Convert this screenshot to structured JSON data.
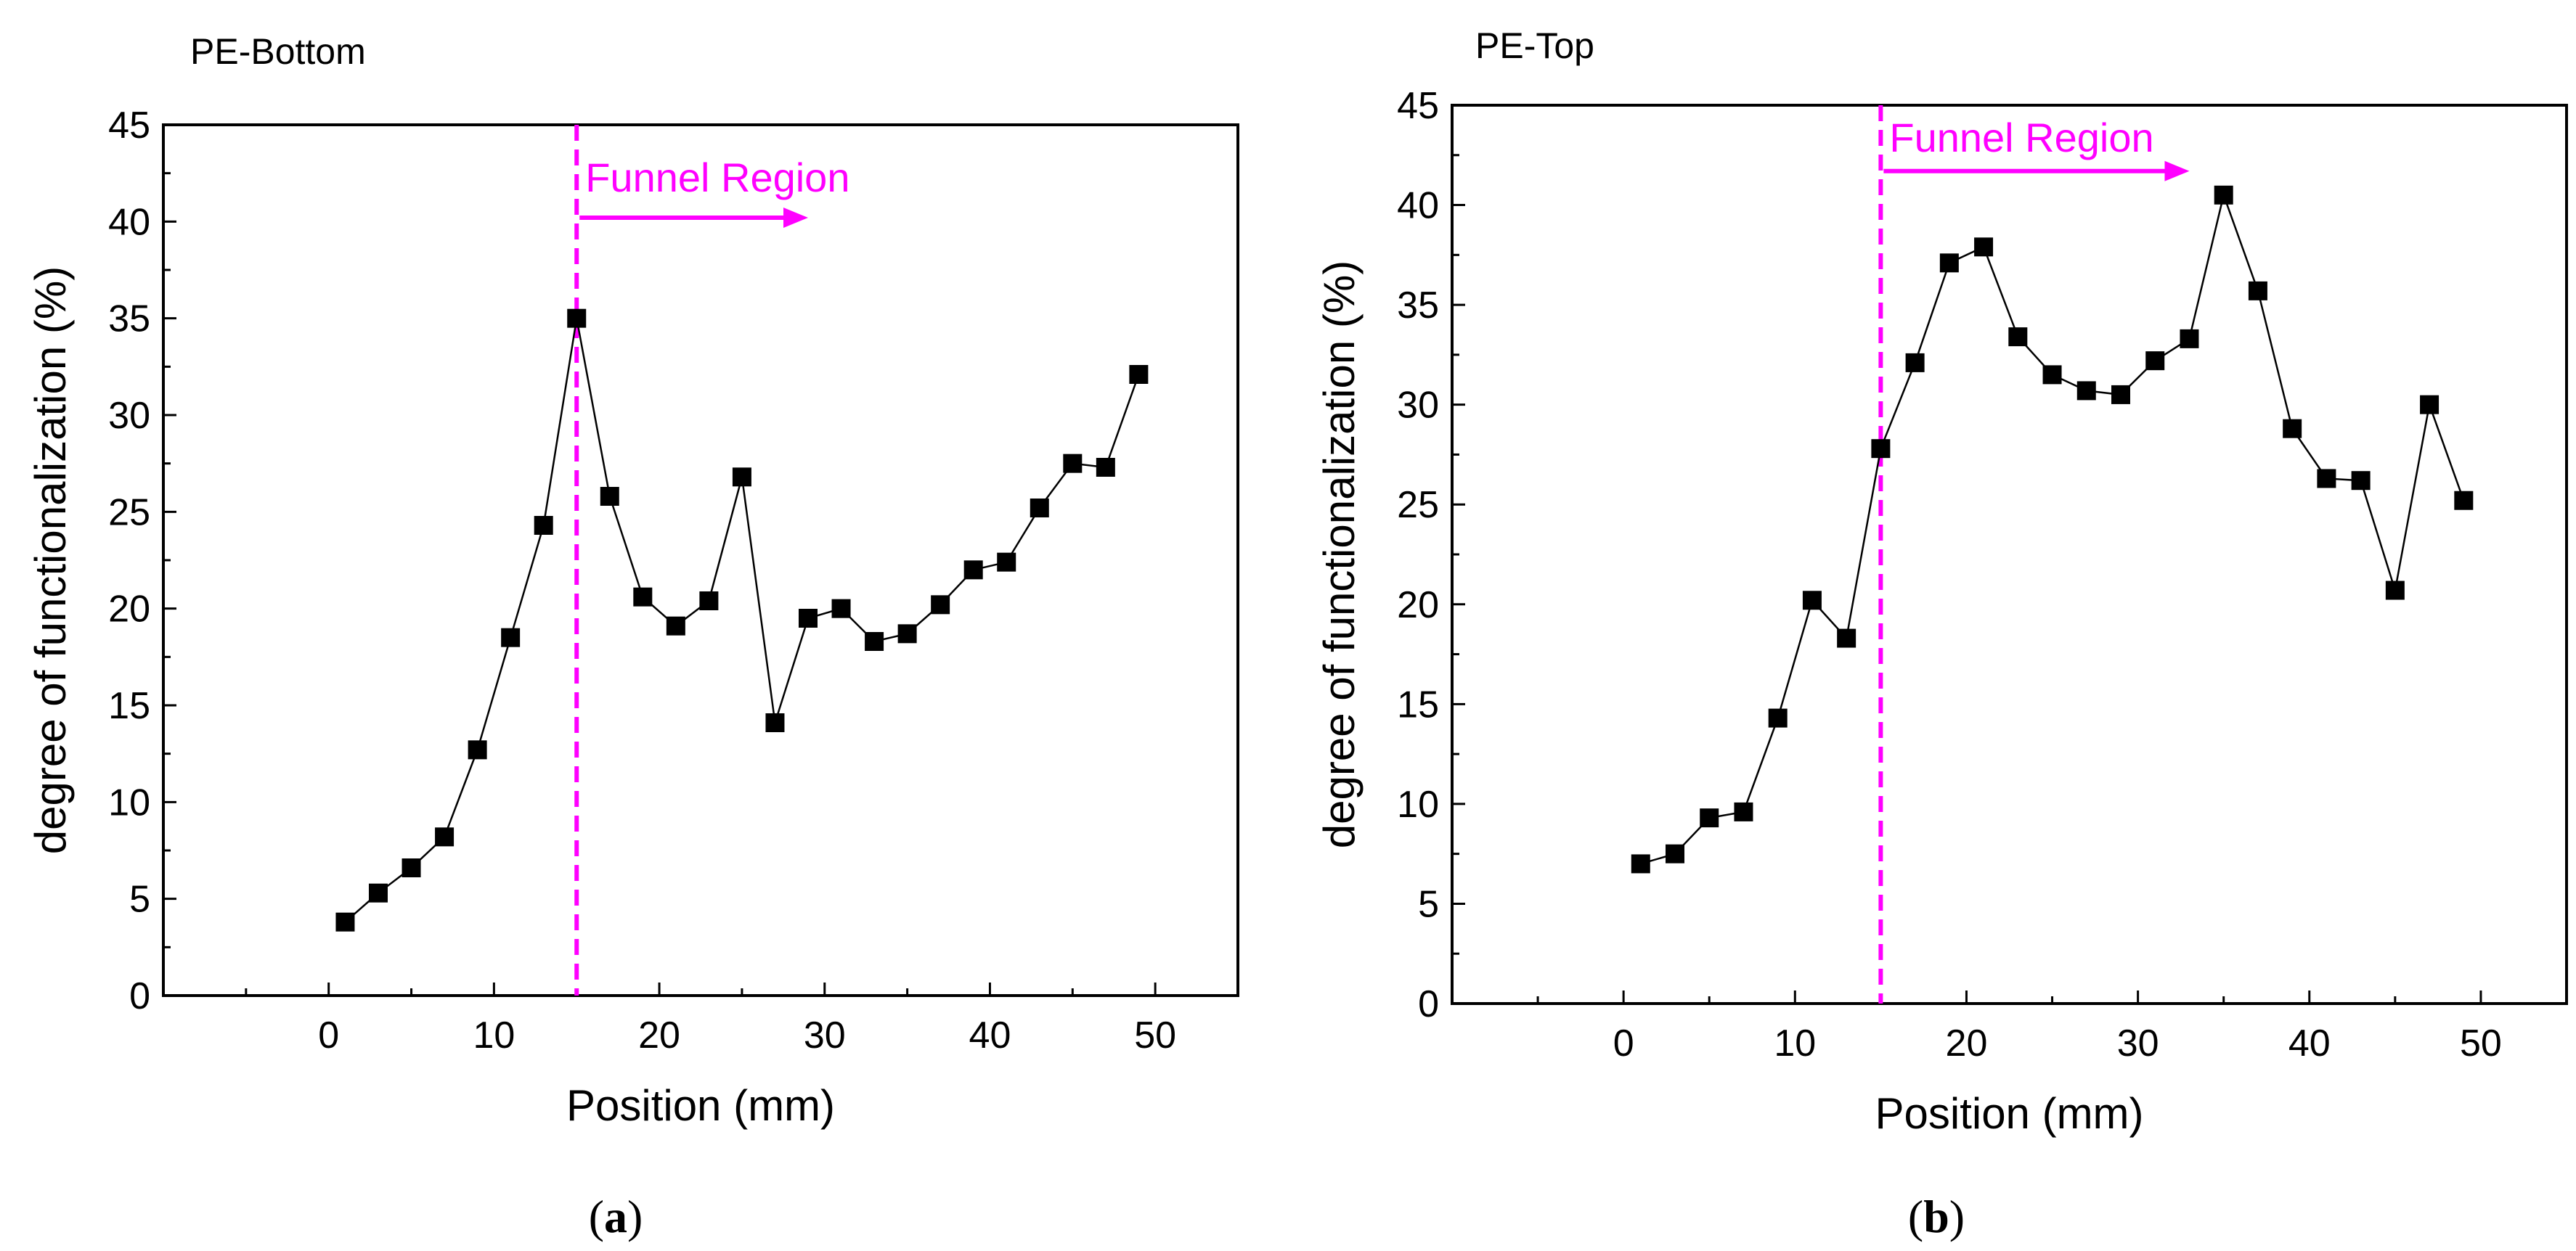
{
  "chart_data": [
    {
      "type": "line",
      "panel": "a",
      "title": "PE-Bottom",
      "caption_open": "(",
      "caption_letter": "a",
      "caption_close": ")",
      "xlabel": "Position (mm)",
      "ylabel": "degree of functionalization (%)",
      "xlim": [
        -10,
        55
      ],
      "ylim": [
        0,
        45
      ],
      "xticks": [
        0,
        10,
        20,
        30,
        40,
        50
      ],
      "yticks": [
        0,
        5,
        10,
        15,
        20,
        25,
        30,
        35,
        40,
        45
      ],
      "marker": "square",
      "annotation": {
        "text": "Funnel Region",
        "x_line": 15,
        "arrow_to_x": 29,
        "y": 40.2,
        "label_y": 42.3,
        "color": "#ff00ff"
      },
      "series": [
        {
          "name": "PE-Bottom",
          "x": [
            1,
            3,
            5,
            7,
            9,
            11,
            13,
            15,
            17,
            19,
            21,
            23,
            25,
            27,
            29,
            31,
            33,
            35,
            37,
            39,
            41,
            43,
            45,
            47,
            49
          ],
          "y": [
            3.8,
            5.3,
            6.6,
            8.2,
            12.7,
            18.5,
            24.3,
            35.0,
            25.8,
            20.6,
            19.1,
            20.4,
            26.8,
            14.1,
            19.5,
            20.0,
            18.3,
            18.7,
            20.2,
            22.0,
            22.4,
            25.2,
            27.5,
            27.3,
            32.1
          ]
        }
      ]
    },
    {
      "type": "line",
      "panel": "b",
      "title": "PE-Top",
      "caption_open": "(",
      "caption_letter": "b",
      "caption_close": ")",
      "xlabel": "Position (mm)",
      "ylabel": "degree of functionalization (%)",
      "xlim": [
        -10,
        55
      ],
      "ylim": [
        0,
        45
      ],
      "xticks": [
        0,
        10,
        20,
        30,
        40,
        50
      ],
      "yticks": [
        0,
        5,
        10,
        15,
        20,
        25,
        30,
        35,
        40,
        45
      ],
      "marker": "square",
      "annotation": {
        "text": "Funnel Region",
        "x_line": 15,
        "arrow_to_x": 33,
        "y": 41.7,
        "label_y": 43.4,
        "color": "#ff00ff"
      },
      "series": [
        {
          "name": "PE-Top",
          "x": [
            1,
            3,
            5,
            7,
            9,
            11,
            13,
            15,
            17,
            19,
            21,
            23,
            25,
            27,
            29,
            31,
            33,
            35,
            37,
            39,
            41,
            43,
            45,
            47,
            49
          ],
          "y": [
            7.0,
            7.5,
            9.3,
            9.6,
            14.3,
            20.2,
            18.3,
            27.8,
            32.1,
            37.1,
            37.9,
            33.4,
            31.5,
            30.7,
            30.5,
            32.2,
            33.3,
            40.5,
            35.7,
            28.8,
            26.3,
            26.2,
            20.7,
            30.0,
            25.2
          ]
        }
      ]
    }
  ]
}
